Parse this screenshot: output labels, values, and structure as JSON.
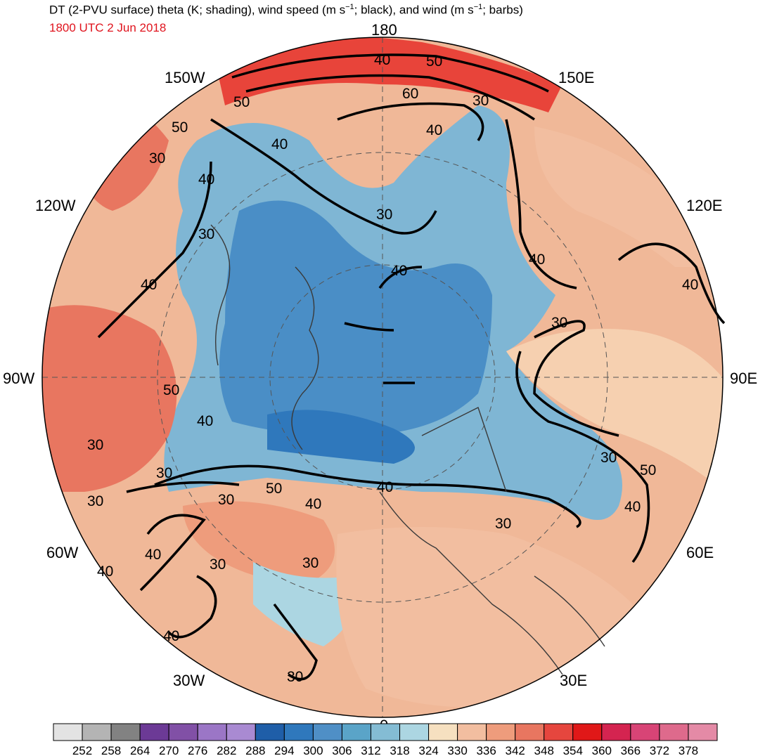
{
  "header": {
    "title_main": "DT (2-PVU surface) theta (K; shading), wind speed (m s",
    "title_mid": "; black), and wind (m s",
    "title_end": "; barbs)",
    "title_sup": "−1",
    "subtitle": "1800 UTC 2 Jun 2018"
  },
  "map": {
    "projection": "north polar stereographic",
    "longitude_labels": {
      "top": "180",
      "lon150w": "150W",
      "lon150e": "150E",
      "lon120w": "120W",
      "lon120e": "120E",
      "lon90w": "90W",
      "lon90e": "90E",
      "lon60w": "60W",
      "lon60e": "60E",
      "lon30w": "30W",
      "lon30e": "30E",
      "bottom": "0"
    },
    "wind_speed_contour_labels": [
      "40",
      "50",
      "60",
      "30",
      "40",
      "50",
      "50",
      "30",
      "40",
      "30",
      "40",
      "30",
      "40",
      "40",
      "30",
      "50",
      "40",
      "30",
      "40",
      "30",
      "30",
      "50",
      "40",
      "40",
      "30",
      "30",
      "30",
      "40",
      "40",
      "40",
      "30",
      "40",
      "30",
      "50",
      "30",
      "40"
    ],
    "colors": {
      "warm_strong": "#e8443a",
      "warm": "#f0a080",
      "cool": "#7fb6d4",
      "cold": "#4a8ec6",
      "contour": "#000000",
      "coast": "#3a3a3a"
    }
  },
  "colorbar": {
    "units": "K",
    "colors": [
      "#e3e3e3",
      "#b4b4b4",
      "#828282",
      "#6c3a96",
      "#8150a6",
      "#9b76c6",
      "#a98ad2",
      "#1f5ea8",
      "#2f78bc",
      "#4f8fc6",
      "#5aa4c8",
      "#84bcd4",
      "#acd6e2",
      "#f6e0c0",
      "#f2bea0",
      "#ee9c7c",
      "#e87660",
      "#e6463e",
      "#e01818",
      "#d42450",
      "#d84476",
      "#de6a8c",
      "#e48aa6"
    ],
    "ticks": [
      "252",
      "258",
      "264",
      "270",
      "276",
      "282",
      "288",
      "294",
      "300",
      "306",
      "312",
      "318",
      "324",
      "330",
      "336",
      "342",
      "348",
      "354",
      "360",
      "366",
      "372",
      "378"
    ]
  }
}
